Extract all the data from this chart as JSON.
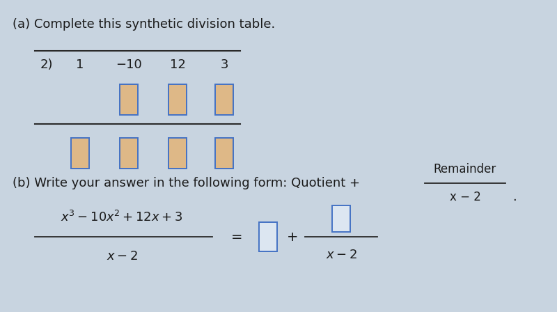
{
  "title_a": "(a) Complete this synthetic division table.",
  "title_b": "(b) Write your answer in the following form: Quotient +",
  "remainder_label": "Remainder",
  "divisor_label": "x − 2",
  "synthetic_divisor": "2)",
  "coefficients": [
    "1",
    "−10",
    "12",
    "3"
  ],
  "card_bg": "#f0f0f0",
  "box_fill_orange": "#deb887",
  "box_fill_blue_light": "#dce6f1",
  "box_border_blue": "#4472c4",
  "text_color": "#1a1a1a",
  "line_color": "#2a2a2a",
  "overall_bg": "#c8d4e0",
  "font_size_main": 13,
  "font_size_small": 11
}
